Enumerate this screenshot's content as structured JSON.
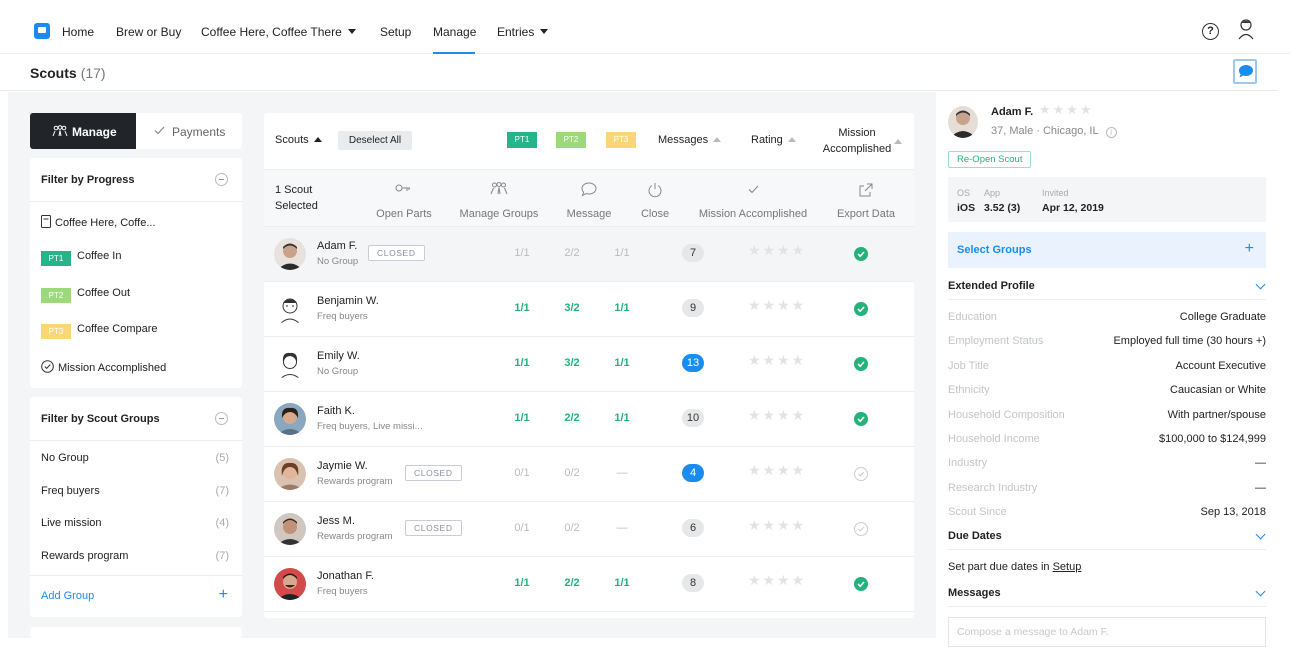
{
  "nav": {
    "items": [
      {
        "label": "Home"
      },
      {
        "label": "Brew or Buy"
      },
      {
        "label": "Coffee Here, Coffee There"
      },
      {
        "label": "Setup"
      },
      {
        "label": "Manage"
      },
      {
        "label": "Entries"
      }
    ],
    "help": "?"
  },
  "page": {
    "title": "Scouts",
    "count": "(17)"
  },
  "toggle": {
    "manage": "Manage",
    "payments": "Payments"
  },
  "filter_progress": {
    "title": "Filter by Progress",
    "items": [
      {
        "label": "Coffee Here, Coffe..."
      },
      {
        "tag": "PT1",
        "label": "Coffee In"
      },
      {
        "tag": "PT2",
        "label": "Coffee Out"
      },
      {
        "tag": "PT3",
        "label": "Coffee Compare"
      },
      {
        "label": "Mission Accomplished"
      }
    ]
  },
  "filter_groups": {
    "title": "Filter by Scout Groups",
    "items": [
      {
        "label": "No Group",
        "count": "(5)"
      },
      {
        "label": "Freq buyers",
        "count": "(7)"
      },
      {
        "label": "Live mission",
        "count": "(4)"
      },
      {
        "label": "Rewards program",
        "count": "(7)"
      }
    ],
    "add": "Add Group"
  },
  "table": {
    "headers": {
      "scouts": "Scouts",
      "deselect": "Deselect All",
      "pt1": "PT1",
      "pt2": "PT2",
      "pt3": "PT3",
      "messages": "Messages",
      "rating": "Rating",
      "mission_line1": "Mission",
      "mission_line2": "Accomplished"
    },
    "selection_line1": "1 Scout",
    "selection_line2": "Selected",
    "actions": [
      {
        "label": "Open Parts"
      },
      {
        "label": "Manage Groups"
      },
      {
        "label": "Message"
      },
      {
        "label": "Close"
      },
      {
        "label": "Mission Accomplished"
      },
      {
        "label": "Export Data"
      }
    ],
    "closed_label": "CLOSED",
    "stars": "★★★★",
    "rows": [
      {
        "name": "Adam F.",
        "group": "No Group",
        "closed": true,
        "pt1": "1/1",
        "pt2": "2/2",
        "pt3": "1/1",
        "active": false,
        "messages": "7",
        "unread": false,
        "mission": true,
        "selected": true
      },
      {
        "name": "Benjamin W.",
        "group": "Freq buyers",
        "closed": false,
        "pt1": "1/1",
        "pt2": "3/2",
        "pt3": "1/1",
        "active": true,
        "messages": "9",
        "unread": false,
        "mission": true,
        "selected": false
      },
      {
        "name": "Emily W.",
        "group": "No Group",
        "closed": false,
        "pt1": "1/1",
        "pt2": "3/2",
        "pt3": "1/1",
        "active": true,
        "messages": "13",
        "unread": true,
        "mission": true,
        "selected": false
      },
      {
        "name": "Faith K.",
        "group": "Freq buyers, Live missi...",
        "closed": false,
        "pt1": "1/1",
        "pt2": "2/2",
        "pt3": "1/1",
        "active": true,
        "messages": "10",
        "unread": false,
        "mission": true,
        "selected": false
      },
      {
        "name": "Jaymie W.",
        "group": "Rewards program",
        "closed": true,
        "pt1": "0/1",
        "pt2": "0/2",
        "pt3": "—",
        "active": false,
        "messages": "4",
        "unread": true,
        "mission": false,
        "selected": false
      },
      {
        "name": "Jess M.",
        "group": "Rewards program",
        "closed": true,
        "pt1": "0/1",
        "pt2": "0/2",
        "pt3": "—",
        "active": false,
        "messages": "6",
        "unread": false,
        "mission": false,
        "selected": false
      },
      {
        "name": "Jonathan F.",
        "group": "Freq buyers",
        "closed": false,
        "pt1": "1/1",
        "pt2": "2/2",
        "pt3": "1/1",
        "active": true,
        "messages": "8",
        "unread": false,
        "mission": true,
        "selected": false
      }
    ]
  },
  "profile": {
    "name": "Adam F.",
    "stars": "★★★★",
    "info": "37, Male · Chicago, IL",
    "info_icon": "i",
    "reopen": "Re-Open Scout",
    "os_label": "OS",
    "os": "iOS",
    "app_label": "App",
    "app": "3.52 (3)",
    "invited_label": "Invited",
    "invited": "Apr 12, 2019",
    "select_groups": "Select Groups",
    "extended_title": "Extended Profile",
    "fields": [
      {
        "label": "Education",
        "value": "College Graduate"
      },
      {
        "label": "Employment Status",
        "value": "Employed full time (30 hours +)"
      },
      {
        "label": "Job Title",
        "value": "Account Executive"
      },
      {
        "label": "Ethnicity",
        "value": "Caucasian or White"
      },
      {
        "label": "Household Composition",
        "value": "With partner/spouse"
      },
      {
        "label": "Household Income",
        "value": "$100,000 to $124,999"
      },
      {
        "label": "Industry",
        "value": "—"
      },
      {
        "label": "Research Industry",
        "value": "—"
      },
      {
        "label": "Scout Since",
        "value": "Sep 13, 2018"
      }
    ],
    "due_title": "Due Dates",
    "due_text": "Set part due dates in",
    "due_link": "Setup",
    "messages_title": "Messages",
    "compose_placeholder": "Compose a message to Adam F."
  },
  "colors": {
    "accent": "#1a8cf0",
    "success": "#23b27a",
    "pt1": "#26b48a",
    "pt2": "#9bd97c",
    "pt3": "#fbd677"
  }
}
